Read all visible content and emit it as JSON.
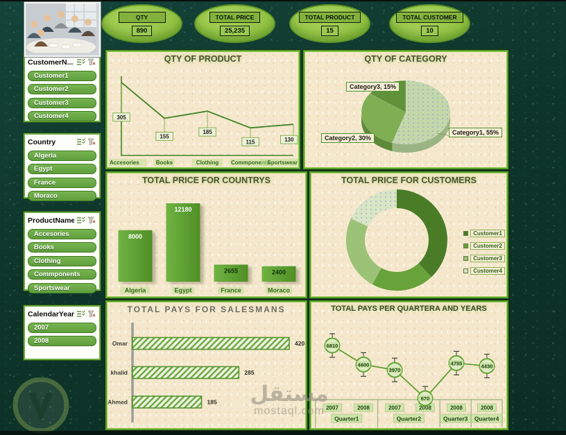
{
  "kpis": [
    {
      "label": "QTY",
      "value": "890"
    },
    {
      "label": "TOTAL PRICE",
      "value": "25,235"
    },
    {
      "label": "TOTAL PRODUCT",
      "value": "15"
    },
    {
      "label": "TOTAL CUSTOMER",
      "value": "10"
    }
  ],
  "slicers": [
    {
      "title": "CustomerN...",
      "items": [
        "Customer1",
        "Customer2",
        "Customer3",
        "Customer4"
      ]
    },
    {
      "title": "Country",
      "items": [
        "Algeria",
        "Egypt",
        "France",
        "Moraco"
      ]
    },
    {
      "title": "ProductName",
      "items": [
        "Accesories",
        "Books",
        "Clothing",
        "Commponents",
        "Sportswear"
      ]
    },
    {
      "title": "CalendarYear",
      "items": [
        "2007",
        "2008"
      ]
    }
  ],
  "watermark": {
    "arabic": "مستقل",
    "domain": "mostaql.com"
  },
  "chart_data": [
    {
      "id": "qty_of_product",
      "type": "line",
      "title": "QTY OF PRODUCT",
      "categories": [
        "Accesories",
        "Books",
        "Clothing",
        "Commponents",
        "Sportswear"
      ],
      "values": [
        305,
        155,
        185,
        115,
        130
      ],
      "xlabel": "",
      "ylabel": "",
      "ylim": [
        0,
        350
      ],
      "grid": false,
      "legend_position": "none"
    },
    {
      "id": "qty_of_category",
      "type": "pie",
      "title": "QTY OF CATEGORY",
      "labels": [
        "Category1",
        "Category2",
        "Category3"
      ],
      "values": [
        55,
        30,
        15
      ],
      "label_format": "name, percent",
      "effect": "3d"
    },
    {
      "id": "total_price_for_countrys",
      "type": "bar",
      "title": "TOTAL PRICE FOR COUNTRYS",
      "categories": [
        "Algeria",
        "Egypt",
        "France",
        "Moraco"
      ],
      "values": [
        8000,
        12180,
        2655,
        2400
      ],
      "xlabel": "",
      "ylabel": "",
      "ylim": [
        0,
        13000
      ],
      "grid": false
    },
    {
      "id": "total_price_for_customers",
      "type": "donut",
      "title": "TOTAL PRICE FOR CUSTOMERS",
      "labels": [
        "Customer1",
        "Customer2",
        "Customer3",
        "Customer4"
      ],
      "values": [
        38,
        20,
        24,
        18
      ],
      "values_unit": "percent_estimated",
      "legend_position": "right"
    },
    {
      "id": "total_pays_for_salesmans",
      "type": "hbar",
      "title": "TOTAL PAYS FOR SALESMANS",
      "categories": [
        "Omar",
        "khalid",
        "Ahmed"
      ],
      "values": [
        420,
        285,
        185
      ],
      "xlim": [
        0,
        450
      ],
      "bar_style": "diagonal-hatch"
    },
    {
      "id": "total_pays_per_quarter_and_years",
      "type": "line",
      "title": "TOTAL PAYS PER QUARTERA AND YEARS",
      "x_groups": [
        {
          "label": "Quarter1",
          "years": [
            "2007",
            "2008"
          ]
        },
        {
          "label": "Quarter2",
          "years": [
            "2007",
            "2008"
          ]
        },
        {
          "label": "Quarter3",
          "years": [
            "2008"
          ]
        },
        {
          "label": "Quarter4",
          "years": [
            "2008"
          ]
        }
      ],
      "values": [
        6810,
        4600,
        3970,
        670,
        4755,
        4430
      ],
      "ylim": [
        0,
        8000
      ],
      "markers": "circle-with-value",
      "error_bars": true
    }
  ],
  "colors": {
    "bg": "#0f372c",
    "panel_bg": "#f4e7cb",
    "panel_border": "#58a02c",
    "accent": "#6aa84f",
    "line": "#3f8426",
    "bar": "#5f9e36",
    "pie": [
      "#c3d7aa",
      "#7fae53",
      "#61923a"
    ],
    "pie_side": [
      "#9ab583",
      "#5d8a38",
      "#47701f"
    ],
    "donut": [
      "#4a7c28",
      "#68a23b",
      "#9cc277",
      "#d9e6c5"
    ],
    "hatch": "#67a83c"
  }
}
